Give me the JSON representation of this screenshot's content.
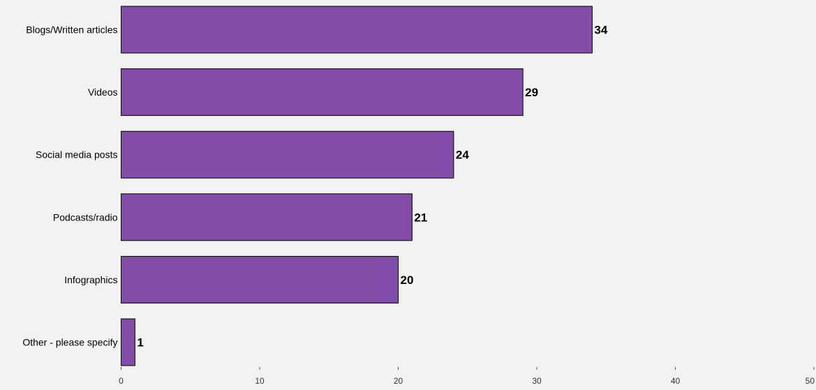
{
  "chart_data": {
    "type": "bar",
    "orientation": "horizontal",
    "categories": [
      "Blogs/Written articles",
      "Videos",
      "Social media posts",
      "Podcasts/radio",
      "Infographics",
      "Other - please specify"
    ],
    "values": [
      34,
      29,
      24,
      21,
      20,
      1
    ],
    "value_labels": [
      "34",
      "29",
      "24",
      "21",
      "20",
      "1"
    ],
    "xticks": [
      "0",
      "10",
      "20",
      "30",
      "40",
      "50"
    ],
    "xlim": [
      0,
      50
    ],
    "title": "",
    "xlabel": "",
    "ylabel": "",
    "grid": false,
    "legend": "none",
    "bar_color": "#834ca8",
    "bar_edge_color": "#000000",
    "background_color": "#f2f2f2"
  }
}
